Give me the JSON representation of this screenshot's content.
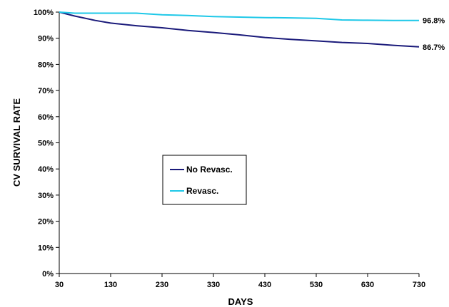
{
  "chart_data": {
    "type": "line",
    "title": "",
    "xlabel": "DAYS",
    "ylabel": "CV SURVIVAL RATE",
    "xlim": [
      30,
      730
    ],
    "ylim": [
      0,
      100
    ],
    "x_ticks": [
      30,
      130,
      230,
      330,
      430,
      530,
      630,
      730
    ],
    "x_tick_labels": [
      "30",
      "130",
      "230",
      "330",
      "430",
      "530",
      "630",
      "730"
    ],
    "y_ticks": [
      0,
      10,
      20,
      30,
      40,
      50,
      60,
      70,
      80,
      90,
      100
    ],
    "y_tick_labels": [
      "0%",
      "10%",
      "20%",
      "30%",
      "40%",
      "50%",
      "60%",
      "70%",
      "80%",
      "90%",
      "100%"
    ],
    "grid": false,
    "legend_position": "center-left",
    "series": [
      {
        "name": "No Revasc.",
        "color": "#1a1a7a",
        "x": [
          30,
          60,
          100,
          130,
          180,
          230,
          280,
          330,
          380,
          430,
          480,
          530,
          580,
          630,
          680,
          730
        ],
        "values": [
          100,
          98.5,
          96.8,
          95.8,
          94.8,
          94.0,
          93.0,
          92.2,
          91.3,
          90.3,
          89.6,
          89.0,
          88.4,
          88.0,
          87.3,
          86.7
        ],
        "end_label": "86.7%"
      },
      {
        "name": "Revasc.",
        "color": "#1ec8e8",
        "x": [
          30,
          60,
          100,
          130,
          180,
          230,
          280,
          330,
          380,
          430,
          480,
          530,
          580,
          630,
          680,
          730
        ],
        "values": [
          100,
          99.6,
          99.6,
          99.6,
          99.6,
          99.0,
          98.7,
          98.3,
          98.1,
          97.9,
          97.8,
          97.6,
          97.0,
          96.9,
          96.8,
          96.8
        ],
        "end_label": "96.8%"
      }
    ]
  }
}
